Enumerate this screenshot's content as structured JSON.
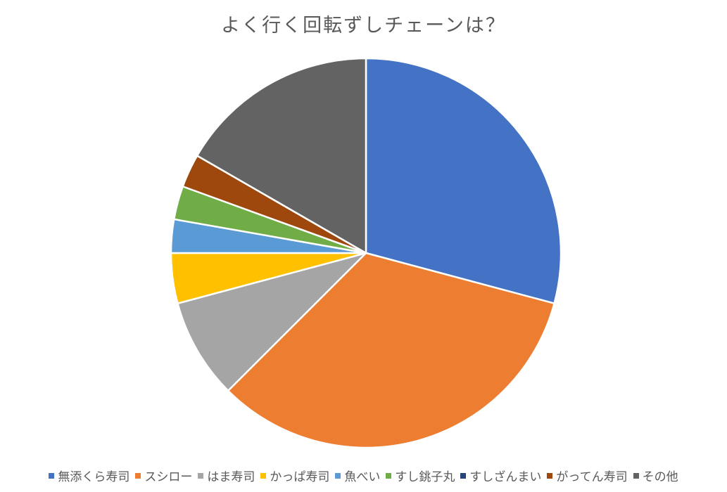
{
  "chart_data": {
    "type": "pie",
    "title": "よく行く回転ずしチェーンは？",
    "categories": [
      "無添くら寿司",
      "スシロー",
      "はま寿司",
      "かっぱ寿司",
      "魚べい",
      "すし銚子丸",
      "すしざんまい",
      "がってん寿司",
      "その他"
    ],
    "values": [
      21,
      24,
      6,
      3,
      2,
      2,
      0,
      2,
      12
    ],
    "colors": [
      "#4472C4",
      "#ED7D31",
      "#A5A5A5",
      "#FFC000",
      "#5B9BD5",
      "#70AD47",
      "#264478",
      "#9E480E",
      "#636363"
    ],
    "start_angle_deg": 0,
    "direction": "clockwise",
    "legend_position": "bottom",
    "data_labels": false
  }
}
